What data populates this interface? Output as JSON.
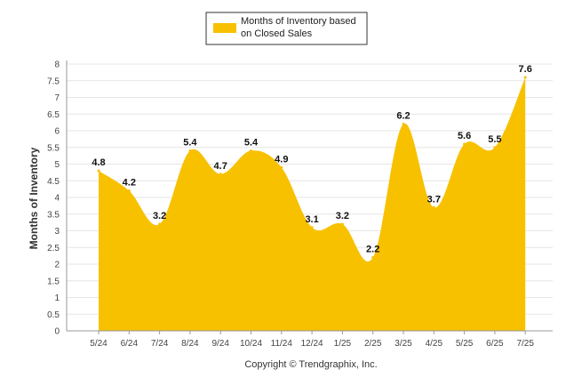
{
  "chart_data": {
    "type": "area",
    "categories": [
      "5/24",
      "6/24",
      "7/24",
      "8/24",
      "9/24",
      "10/24",
      "11/24",
      "12/24",
      "1/25",
      "2/25",
      "3/25",
      "4/25",
      "5/25",
      "6/25",
      "7/25"
    ],
    "series": [
      {
        "name": "Months of Inventory based on Closed Sales",
        "values": [
          4.8,
          4.2,
          3.2,
          5.4,
          4.7,
          5.4,
          4.9,
          3.1,
          3.2,
          2.2,
          6.2,
          3.7,
          5.6,
          5.5,
          7.6
        ]
      }
    ],
    "ylabel": "Months of Inventory",
    "ylim": [
      0,
      8
    ],
    "yticks": [
      "0",
      "0.5",
      "1",
      "1.5",
      "2",
      "2.5",
      "3",
      "3.5",
      "4",
      "4.5",
      "5",
      "5.5",
      "6",
      "6.5",
      "7",
      "7.5",
      "8"
    ],
    "data_labels": [
      "4.8",
      "4.2",
      "3.2",
      "5.4",
      "4.7",
      "5.4",
      "4.9",
      "3.1",
      "3.2",
      "2.2",
      "6.2",
      "3.7",
      "5.6",
      "5.5",
      "7.6"
    ],
    "grid": true,
    "legend_position": "top-center",
    "legend_lines": [
      "Months of Inventory based",
      "on Closed Sales"
    ],
    "color": "#F7C100"
  },
  "footer": "Copyright © Trendgraphix, Inc."
}
